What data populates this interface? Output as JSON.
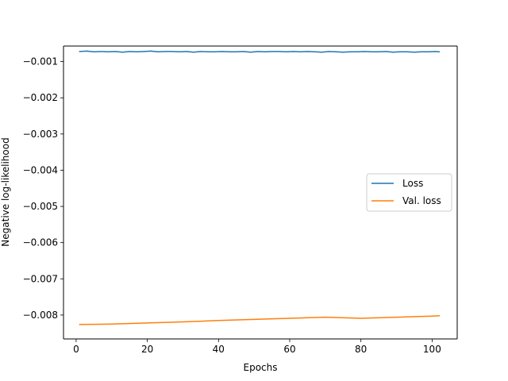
{
  "chart_data": {
    "type": "line",
    "xlabel": "Epochs",
    "ylabel": "Negative log-likelihood",
    "xlim": [
      -3.55,
      107.05
    ],
    "ylim": [
      -0.00866,
      -0.00057
    ],
    "xticks": [
      0,
      20,
      40,
      60,
      80,
      100
    ],
    "yticks": [
      -0.008,
      -0.007,
      -0.006,
      -0.005,
      -0.004,
      -0.003,
      -0.002,
      -0.001
    ],
    "ytick_labels": [
      "−0.008",
      "−0.007",
      "−0.006",
      "−0.005",
      "−0.004",
      "−0.003",
      "−0.002",
      "−0.001"
    ],
    "legend_position": "center-right",
    "grid": false,
    "series": [
      {
        "name": "Loss",
        "color": "#1f77b4",
        "x": [
          1,
          3,
          5,
          7,
          9,
          11,
          13,
          15,
          17,
          19,
          21,
          23,
          25,
          27,
          29,
          31,
          33,
          35,
          37,
          39,
          41,
          43,
          45,
          47,
          49,
          51,
          53,
          55,
          57,
          59,
          61,
          63,
          65,
          67,
          69,
          71,
          73,
          75,
          77,
          79,
          81,
          83,
          85,
          87,
          89,
          91,
          93,
          95,
          97,
          99,
          101,
          102
        ],
        "y": [
          -0.00072,
          -0.00071,
          -0.00073,
          -0.00072,
          -0.00073,
          -0.00072,
          -0.00074,
          -0.00072,
          -0.00073,
          -0.00072,
          -0.00071,
          -0.00073,
          -0.00072,
          -0.00072,
          -0.00073,
          -0.00072,
          -0.00074,
          -0.00072,
          -0.00073,
          -0.00073,
          -0.00072,
          -0.00073,
          -0.00073,
          -0.00072,
          -0.00074,
          -0.00072,
          -0.00073,
          -0.00072,
          -0.00072,
          -0.00073,
          -0.00072,
          -0.00073,
          -0.00072,
          -0.00073,
          -0.00074,
          -0.00072,
          -0.00073,
          -0.00074,
          -0.00073,
          -0.00073,
          -0.00072,
          -0.00073,
          -0.00073,
          -0.00072,
          -0.00074,
          -0.00073,
          -0.00073,
          -0.00074,
          -0.00073,
          -0.00073,
          -0.00072,
          -0.00073
        ]
      },
      {
        "name": "Val. loss",
        "color": "#ff7f0e",
        "x": [
          1,
          10,
          20,
          30,
          40,
          50,
          60,
          70,
          80,
          90,
          100,
          102
        ],
        "y": [
          -0.00826,
          -0.00825,
          -0.00822,
          -0.00819,
          -0.00815,
          -0.00812,
          -0.00809,
          -0.00806,
          -0.00809,
          -0.00806,
          -0.00803,
          -0.00802
        ]
      }
    ]
  }
}
